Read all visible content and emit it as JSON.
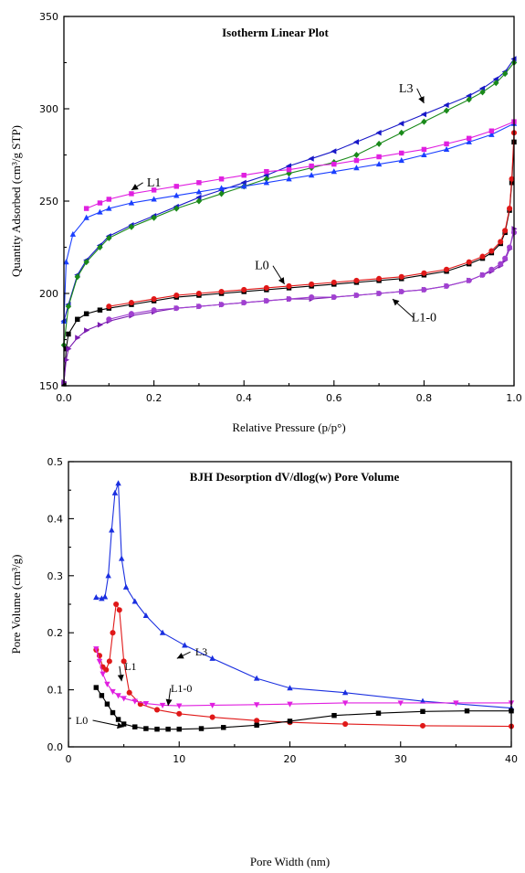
{
  "chart_data": [
    {
      "type": "line",
      "title": "Isotherm Linear Plot",
      "xlabel": "Relative Pressure (p/p°)",
      "ylabel": "Quantity Adsorbed (cm³/g STP)",
      "xlim": [
        0,
        1.0
      ],
      "ylim": [
        150,
        350
      ],
      "xticks": [
        "0.0",
        "0.2",
        "0.4",
        "0.6",
        "0.8",
        "1.0"
      ],
      "yticks": [
        "150",
        "200",
        "250",
        "300",
        "350"
      ],
      "legend": "none",
      "annotations": [
        {
          "text": "L3",
          "x": 0.76,
          "y": 309,
          "arrow_to": [
            0.8,
            303
          ]
        },
        {
          "text": "L1",
          "x": 0.2,
          "y": 258,
          "arrow_to": [
            0.15,
            256
          ]
        },
        {
          "text": "L0",
          "x": 0.44,
          "y": 213,
          "arrow_to": [
            0.49,
            205
          ]
        },
        {
          "text": "L1-0",
          "x": 0.8,
          "y": 185,
          "arrow_to": [
            0.73,
            197
          ]
        }
      ],
      "series": [
        {
          "name": "L3",
          "color": "#1818c8",
          "marker": "triangle-left",
          "x": [
            0.0,
            0.01,
            0.03,
            0.05,
            0.08,
            0.1,
            0.15,
            0.2,
            0.25,
            0.3,
            0.35,
            0.4,
            0.45,
            0.5,
            0.55,
            0.6,
            0.65,
            0.7,
            0.75,
            0.8,
            0.85,
            0.9,
            0.93,
            0.96,
            0.98,
            1.0
          ],
          "y": [
            185,
            194,
            210,
            218,
            226,
            231,
            237,
            242,
            247,
            252,
            256,
            260,
            264,
            269,
            273,
            277,
            282,
            287,
            292,
            297,
            302,
            307,
            311,
            316,
            320,
            327
          ]
        },
        {
          "name": "L3",
          "color": "#1a8a1a",
          "marker": "diamond",
          "x": [
            0.0,
            0.01,
            0.03,
            0.05,
            0.08,
            0.1,
            0.15,
            0.2,
            0.25,
            0.3,
            0.35,
            0.4,
            0.45,
            0.5,
            0.55,
            0.6,
            0.65,
            0.7,
            0.75,
            0.8,
            0.85,
            0.9,
            0.93,
            0.96,
            0.98,
            1.0
          ],
          "y": [
            172,
            193,
            209,
            217,
            225,
            230,
            236,
            241,
            246,
            250,
            254,
            258,
            262,
            265,
            268,
            271,
            275,
            281,
            287,
            293,
            299,
            305,
            309,
            314,
            319,
            325
          ]
        },
        {
          "name": "L1",
          "color": "#1a3fff",
          "marker": "triangle-up",
          "x": [
            0.0,
            0.005,
            0.02,
            0.05,
            0.08,
            0.1,
            0.15,
            0.2,
            0.25,
            0.3,
            0.35,
            0.4,
            0.45,
            0.5,
            0.55,
            0.6,
            0.65,
            0.7,
            0.75,
            0.8,
            0.85,
            0.9,
            0.95,
            1.0
          ],
          "y": [
            185,
            217,
            232,
            241,
            244,
            246,
            249,
            251,
            253,
            255,
            257,
            258,
            260,
            262,
            264,
            266,
            268,
            270,
            272,
            275,
            278,
            282,
            286,
            292
          ]
        },
        {
          "name": "L1",
          "color": "#e020e0",
          "marker": "square",
          "x": [
            0.05,
            0.08,
            0.1,
            0.15,
            0.2,
            0.25,
            0.3,
            0.35,
            0.4,
            0.45,
            0.5,
            0.55,
            0.6,
            0.65,
            0.7,
            0.75,
            0.8,
            0.85,
            0.9,
            0.95,
            1.0
          ],
          "y": [
            246,
            249,
            251,
            254,
            256,
            258,
            260,
            262,
            264,
            266,
            267,
            269,
            270,
            272,
            274,
            276,
            278,
            281,
            284,
            288,
            293
          ]
        },
        {
          "name": "L0",
          "color": "#000000",
          "marker": "square",
          "x": [
            0.0,
            0.005,
            0.01,
            0.03,
            0.05,
            0.08,
            0.1,
            0.15,
            0.2,
            0.25,
            0.3,
            0.35,
            0.4,
            0.45,
            0.5,
            0.55,
            0.6,
            0.65,
            0.7,
            0.75,
            0.8,
            0.85,
            0.9,
            0.93,
            0.95,
            0.97,
            0.98,
            0.99,
            0.995,
            1.0
          ],
          "y": [
            151,
            170,
            178,
            186,
            189,
            191,
            192,
            194,
            196,
            198,
            199,
            200,
            201,
            202,
            203,
            204,
            205,
            206,
            207,
            208,
            210,
            212,
            216,
            219,
            222,
            227,
            233,
            245,
            260,
            282
          ]
        },
        {
          "name": "L0",
          "color": "#e01818",
          "marker": "circle",
          "x": [
            0.1,
            0.15,
            0.2,
            0.25,
            0.3,
            0.35,
            0.4,
            0.45,
            0.5,
            0.55,
            0.6,
            0.65,
            0.7,
            0.75,
            0.8,
            0.85,
            0.9,
            0.93,
            0.95,
            0.97,
            0.98,
            0.99,
            0.995,
            1.0
          ],
          "y": [
            193,
            195,
            197,
            199,
            200,
            201,
            202,
            203,
            204,
            205,
            206,
            207,
            208,
            209,
            211,
            213,
            217,
            220,
            223,
            228,
            234,
            246,
            262,
            287
          ]
        },
        {
          "name": "L1-0",
          "color": "#7a1ab0",
          "marker": "triangle-right",
          "x": [
            0.0,
            0.005,
            0.01,
            0.03,
            0.05,
            0.08,
            0.1,
            0.15,
            0.2,
            0.25,
            0.3,
            0.35,
            0.4,
            0.45,
            0.5,
            0.55,
            0.6,
            0.65,
            0.7,
            0.75,
            0.8,
            0.85,
            0.9,
            0.93,
            0.95,
            0.97,
            0.98,
            0.99,
            1.0
          ],
          "y": [
            152,
            164,
            170,
            176,
            180,
            183,
            185,
            188,
            190,
            192,
            193,
            194,
            195,
            196,
            197,
            197,
            198,
            199,
            200,
            201,
            202,
            204,
            207,
            210,
            212,
            215,
            218,
            224,
            235
          ]
        },
        {
          "name": "L1-0",
          "color": "#a040d0",
          "marker": "circle",
          "x": [
            0.1,
            0.15,
            0.2,
            0.25,
            0.3,
            0.35,
            0.4,
            0.45,
            0.5,
            0.55,
            0.6,
            0.65,
            0.7,
            0.75,
            0.8,
            0.85,
            0.9,
            0.93,
            0.95,
            0.97,
            0.98,
            0.99,
            1.0
          ],
          "y": [
            186,
            189,
            191,
            192,
            193,
            194,
            195,
            196,
            197,
            198,
            198,
            199,
            200,
            201,
            202,
            204,
            207,
            210,
            213,
            216,
            219,
            225,
            233
          ]
        }
      ]
    },
    {
      "type": "line",
      "title": "BJH Desorption dV/dlog(w) Pore Volume",
      "xlabel": "Pore Width (nm)",
      "ylabel": "Pore Volume (cm³/g)",
      "xlim": [
        0,
        40
      ],
      "ylim": [
        0.0,
        0.5
      ],
      "xticks": [
        "0",
        "10",
        "20",
        "30",
        "40"
      ],
      "yticks": [
        "0.0",
        "0.1",
        "0.2",
        "0.3",
        "0.4",
        "0.5"
      ],
      "legend": "none",
      "annotations": [
        {
          "text": "L3",
          "x": 12.0,
          "y": 0.16,
          "arrow_to": [
            9.8,
            0.155
          ]
        },
        {
          "text": "L1",
          "x": 5.6,
          "y": 0.135,
          "arrow_to": [
            4.8,
            0.115
          ]
        },
        {
          "text": "L1-0",
          "x": 10.2,
          "y": 0.096,
          "arrow_to": [
            9.0,
            0.072
          ]
        },
        {
          "text": "L0",
          "x": 1.2,
          "y": 0.04,
          "arrow_to": [
            5.0,
            0.035
          ]
        }
      ],
      "series": [
        {
          "name": "L3",
          "color": "#1a2fe0",
          "marker": "triangle-up",
          "x": [
            2.5,
            3.0,
            3.3,
            3.6,
            3.9,
            4.2,
            4.5,
            4.8,
            5.2,
            6.0,
            7.0,
            8.5,
            10.5,
            13,
            17,
            20,
            25,
            32,
            40
          ],
          "y": [
            0.262,
            0.26,
            0.263,
            0.3,
            0.38,
            0.445,
            0.462,
            0.33,
            0.28,
            0.255,
            0.23,
            0.2,
            0.178,
            0.155,
            0.12,
            0.103,
            0.095,
            0.08,
            0.068
          ]
        },
        {
          "name": "L1",
          "color": "#e01818",
          "marker": "circle",
          "x": [
            2.5,
            2.8,
            3.1,
            3.4,
            3.7,
            4.0,
            4.3,
            4.6,
            5.0,
            5.5,
            6.5,
            8,
            10,
            13,
            17,
            20,
            25,
            32,
            40
          ],
          "y": [
            0.17,
            0.16,
            0.14,
            0.135,
            0.15,
            0.2,
            0.25,
            0.24,
            0.15,
            0.095,
            0.075,
            0.065,
            0.058,
            0.052,
            0.046,
            0.043,
            0.04,
            0.037,
            0.036
          ]
        },
        {
          "name": "L1-0",
          "color": "#e020e0",
          "marker": "triangle-down",
          "x": [
            2.5,
            2.8,
            3.1,
            3.5,
            4.0,
            4.5,
            5.0,
            6.0,
            7.0,
            8.5,
            10,
            13,
            17,
            20,
            25,
            30,
            35,
            40
          ],
          "y": [
            0.172,
            0.15,
            0.128,
            0.11,
            0.097,
            0.09,
            0.085,
            0.08,
            0.076,
            0.073,
            0.072,
            0.073,
            0.074,
            0.075,
            0.077,
            0.077,
            0.077,
            0.077
          ]
        },
        {
          "name": "L0",
          "color": "#000000",
          "marker": "square",
          "x": [
            2.5,
            3.0,
            3.5,
            4.0,
            4.5,
            5.0,
            6.0,
            7.0,
            8.0,
            9.0,
            10,
            12,
            14,
            17,
            20,
            24,
            28,
            32,
            36,
            40
          ],
          "y": [
            0.104,
            0.09,
            0.075,
            0.06,
            0.048,
            0.04,
            0.035,
            0.032,
            0.031,
            0.031,
            0.031,
            0.032,
            0.034,
            0.038,
            0.045,
            0.055,
            0.059,
            0.062,
            0.063,
            0.063
          ]
        }
      ]
    }
  ]
}
